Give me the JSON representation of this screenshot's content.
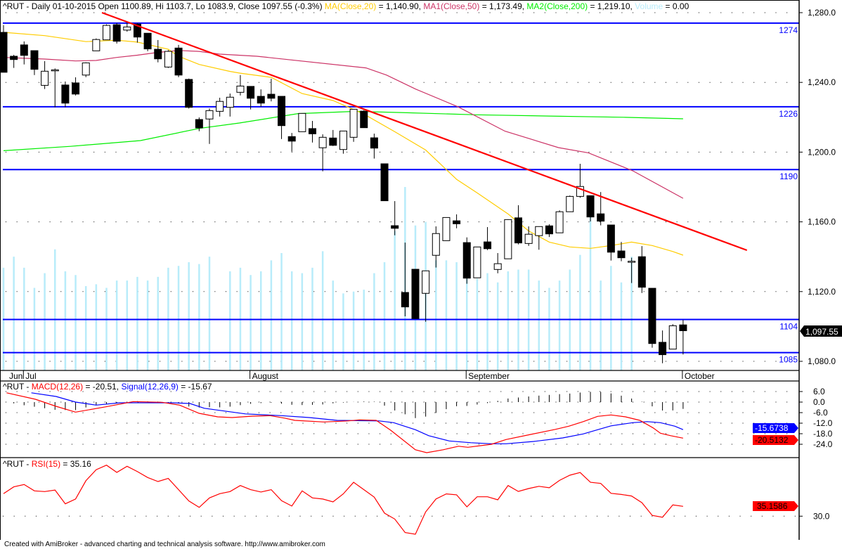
{
  "colors": {
    "ma20": "#ffcc00",
    "ma50": "#cc3366",
    "ma200": "#00ee00",
    "volume": "#b8ecfa",
    "trendline": "#ff0000",
    "hline": "#0000ff",
    "macd": "#ff0000",
    "signal": "#0000ff",
    "rsi": "#ff0000"
  },
  "price_header": {
    "prefix": "^RUT - Daily 01-10-2015 Open 1100.89, Hi 1103.7, Lo 1083.9, Close 1097.55 (-0.3%) ",
    "ma20_label": "MA(Close,20)",
    "ma20_value": " = 1,140.90, ",
    "ma50_label": "MA1(Close,50)",
    "ma50_value": " = 1,173.49, ",
    "ma200_label": "MA2(Close,200)",
    "ma200_value": " = 1,219.10, ",
    "volume_label": "Volume",
    "volume_value": " = 0.00"
  },
  "macd_header": {
    "prefix": "^RUT - ",
    "macd_label": "MACD(12,26)",
    "macd_value": " = -20.51, ",
    "signal_label": "Signal(12,26,9)",
    "signal_value": " = -15.67"
  },
  "rsi_header": {
    "prefix": "^RUT - ",
    "rsi_label": "RSI(15)",
    "rsi_value": " = 35.16"
  },
  "badges": {
    "price": "1,097.55",
    "signal": "-15.6738",
    "macd": "-20.5132",
    "rsi": "35.1586"
  },
  "footer": "Created with AmiBroker - advanced charting and technical analysis software. http://www.amibroker.com",
  "chart_data": [
    {
      "type": "candlestick",
      "title": "^RUT - Daily",
      "ylim": [
        1080,
        1280
      ],
      "yticks": [
        {
          "v": 1280,
          "label": "1,280.0"
        },
        {
          "v": 1240,
          "label": "1,240.0"
        },
        {
          "v": 1200,
          "label": "1,200.0"
        },
        {
          "v": 1160,
          "label": "1,160.0"
        },
        {
          "v": 1120,
          "label": "1,120.0"
        },
        {
          "v": 1080,
          "label": "1,080.0"
        }
      ],
      "xlabels": [
        {
          "label": "Jun",
          "index": 0,
          "tick": false
        },
        {
          "label": "Jul",
          "index": 2,
          "tick": true
        },
        {
          "label": "August",
          "index": 24,
          "tick": true
        },
        {
          "label": "September",
          "index": 45,
          "tick": true
        },
        {
          "label": "October",
          "index": 66,
          "tick": true
        }
      ],
      "ohlc": [
        [
          1268.7,
          1272.9,
          1245.8,
          1245.8
        ],
        [
          1255.0,
          1255.8,
          1248.3,
          1253.1
        ],
        [
          1261.5,
          1263.5,
          1250.3,
          1255.5
        ],
        [
          1258.2,
          1258.2,
          1244.2,
          1247.5
        ],
        [
          1238.3,
          1252.2,
          1236.2,
          1246.4
        ],
        [
          1247.2,
          1248.0,
          1225.7,
          1247.2
        ],
        [
          1238.5,
          1240.5,
          1225.7,
          1228.1
        ],
        [
          1239.7,
          1242.9,
          1232.5,
          1233.3
        ],
        [
          1244.2,
          1251.5,
          1243.0,
          1251.2
        ],
        [
          1258.1,
          1265.2,
          1258.1,
          1264.6
        ],
        [
          1264.4,
          1273.3,
          1264.4,
          1272.7
        ],
        [
          1273.1,
          1274.0,
          1262.3,
          1263.6
        ],
        [
          1270.0,
          1274.2,
          1269.1,
          1271.8
        ],
        [
          1273.5,
          1274.0,
          1262.8,
          1266.0
        ],
        [
          1268.2,
          1268.2,
          1257.9,
          1259.2
        ],
        [
          1259.0,
          1264.3,
          1251.5,
          1253.5
        ],
        [
          1248.8,
          1258.5,
          1248.3,
          1257.8
        ],
        [
          1259.7,
          1261.5,
          1243.0,
          1244.2
        ],
        [
          1241.7,
          1242.2,
          1225.0,
          1225.7
        ],
        [
          1218.7,
          1219.9,
          1212.0,
          1213.9
        ],
        [
          1219.0,
          1225.0,
          1204.7,
          1223.8
        ],
        [
          1223.4,
          1231.2,
          1220.4,
          1229.1
        ],
        [
          1225.7,
          1233.6,
          1220.4,
          1231.5
        ],
        [
          1234.3,
          1244.2,
          1232.5,
          1237.9
        ],
        [
          1237.7,
          1237.7,
          1224.5,
          1230.9
        ],
        [
          1232.0,
          1236.0,
          1226.0,
          1228.1
        ],
        [
          1233.2,
          1242.1,
          1229.1,
          1230.9
        ],
        [
          1232.0,
          1232.0,
          1207.5,
          1215.2
        ],
        [
          1208.9,
          1211.0,
          1200.3,
          1206.3
        ],
        [
          1211.7,
          1222.2,
          1211.7,
          1222.2
        ],
        [
          1213.5,
          1217.9,
          1205.5,
          1210.5
        ],
        [
          1202.5,
          1210.2,
          1189.0,
          1208.5
        ],
        [
          1208.1,
          1212.7,
          1203.5,
          1203.9
        ],
        [
          1201.5,
          1212.1,
          1199.1,
          1212.1
        ],
        [
          1208.5,
          1224.6,
          1205.9,
          1224.6
        ],
        [
          1223.5,
          1224.0,
          1214.0,
          1214.0
        ],
        [
          1208.2,
          1210.6,
          1196.3,
          1202.3
        ],
        [
          1193.3,
          1193.3,
          1172.1,
          1172.1
        ],
        [
          1157.8,
          1171.9,
          1152.3,
          1156.3
        ],
        [
          1119.5,
          1148.1,
          1105.8,
          1111.2
        ],
        [
          1132.8,
          1132.8,
          1104.3,
          1104.5
        ],
        [
          1119.0,
          1131.9,
          1102.7,
          1131.9
        ],
        [
          1140.8,
          1157.4,
          1133.8,
          1153.3
        ],
        [
          1149.2,
          1162.5,
          1149.2,
          1162.5
        ],
        [
          1160.6,
          1164.3,
          1156.3,
          1158.9
        ],
        [
          1148.1,
          1151.1,
          1124.5,
          1127.7
        ],
        [
          1127.9,
          1145.6,
          1127.9,
          1145.6
        ],
        [
          1148.5,
          1157.0,
          1143.8,
          1144.6
        ],
        [
          1132.7,
          1142.1,
          1130.5,
          1136.0
        ],
        [
          1138.8,
          1161.5,
          1138.8,
          1161.3
        ],
        [
          1162.3,
          1169.5,
          1147.1,
          1147.9
        ],
        [
          1147.6,
          1157.4,
          1146.2,
          1152.9
        ],
        [
          1152.1,
          1157.3,
          1144.0,
          1157.3
        ],
        [
          1157.7,
          1158.6,
          1151.3,
          1153.1
        ],
        [
          1153.7,
          1166.6,
          1153.7,
          1165.8
        ],
        [
          1165.8,
          1175.1,
          1165.8,
          1174.6
        ],
        [
          1174.6,
          1193.3,
          1173.8,
          1180.3
        ],
        [
          1175.0,
          1175.0,
          1160.2,
          1162.8
        ],
        [
          1164.6,
          1177.1,
          1158.0,
          1160.4
        ],
        [
          1158.2,
          1158.2,
          1137.8,
          1142.6
        ],
        [
          1143.3,
          1148.5,
          1137.4,
          1139.4
        ],
        [
          1137.4,
          1139.4,
          1124.9,
          1137.4
        ],
        [
          1140.0,
          1146.1,
          1119.2,
          1122.5
        ],
        [
          1121.9,
          1121.9,
          1087.8,
          1090.2
        ],
        [
          1090.9,
          1097.7,
          1078.9,
          1083.8
        ],
        [
          1087.0,
          1101.3,
          1087.0,
          1100.4
        ],
        [
          1100.89,
          1103.7,
          1083.9,
          1097.55
        ]
      ],
      "volume_relative": [
        56,
        62,
        56,
        45,
        53,
        66,
        54,
        52,
        46,
        47,
        45,
        49,
        49,
        51,
        49,
        51,
        56,
        57,
        59,
        58,
        62,
        0,
        54,
        56,
        52,
        54,
        60,
        64,
        54,
        53,
        56,
        65,
        49,
        42,
        43,
        44,
        53,
        59,
        76,
        100,
        79,
        81,
        60,
        60,
        59,
        50,
        50,
        53,
        48,
        54,
        55,
        55,
        49,
        45,
        49,
        55,
        63,
        87,
        49,
        57,
        48,
        62,
        0,
        0,
        0,
        0,
        0
      ],
      "ma20": [
        [
          0,
          1268.7
        ],
        [
          4,
          1266.8
        ],
        [
          8,
          1263.4
        ],
        [
          11,
          1264.2
        ],
        [
          13,
          1263.1
        ],
        [
          16,
          1259
        ],
        [
          17,
          1255
        ],
        [
          19,
          1250.3
        ],
        [
          22,
          1246.3
        ],
        [
          23,
          1245.3
        ],
        [
          26,
          1242.9
        ],
        [
          29,
          1233.6
        ],
        [
          32,
          1229.6
        ],
        [
          35,
          1221.8
        ],
        [
          38,
          1211.7
        ],
        [
          41,
          1201.2
        ],
        [
          44,
          1184.4
        ],
        [
          46,
          1176.6
        ],
        [
          49,
          1164.5
        ],
        [
          51,
          1154.8
        ],
        [
          53,
          1148.4
        ],
        [
          55,
          1145.6
        ],
        [
          57,
          1144.8
        ],
        [
          59,
          1146.4
        ],
        [
          61,
          1148.4
        ],
        [
          63,
          1146.4
        ],
        [
          65,
          1143
        ],
        [
          66,
          1140.9
        ]
      ],
      "ma50": [
        [
          0,
          1254.3
        ],
        [
          4,
          1253.4
        ],
        [
          7,
          1252.3
        ],
        [
          9,
          1252.6
        ],
        [
          11,
          1254.3
        ],
        [
          13,
          1255.6
        ],
        [
          15,
          1257.2
        ],
        [
          17,
          1258.3
        ],
        [
          19,
          1257.8
        ],
        [
          21,
          1256.2
        ],
        [
          24.6,
          1255
        ],
        [
          35.2,
          1248.3
        ],
        [
          37.2,
          1244.2
        ],
        [
          40,
          1236.2
        ],
        [
          44.1,
          1226.1
        ],
        [
          48.7,
          1212
        ],
        [
          53.9,
          1202.6
        ],
        [
          56.8,
          1199.6
        ],
        [
          61.1,
          1189.3
        ],
        [
          66,
          1173.49
        ]
      ],
      "ma200": [
        [
          0,
          1200.8
        ],
        [
          6.5,
          1203.3
        ],
        [
          13.3,
          1206.6
        ],
        [
          19,
          1213.6
        ],
        [
          22.9,
          1216.7
        ],
        [
          28.6,
          1222.1
        ],
        [
          34.3,
          1223.4
        ],
        [
          38.6,
          1222.7
        ],
        [
          45.9,
          1221.4
        ],
        [
          53,
          1220.7
        ],
        [
          60.2,
          1220
        ],
        [
          66,
          1219.1
        ]
      ],
      "trendline": [
        [
          9.56,
          1280
        ],
        [
          72.2,
          1143.7
        ]
      ],
      "hlines": [
        {
          "value": 1274,
          "label": "1274"
        },
        {
          "value": 1226,
          "label": "1226"
        },
        {
          "value": 1190,
          "label": "1190"
        },
        {
          "value": 1104,
          "label": "1104"
        },
        {
          "value": 1085,
          "label": "1085"
        }
      ]
    },
    {
      "type": "line",
      "title": "MACD(12,26) / Signal(12,26,9)",
      "ylim": [
        -27.5,
        11
      ],
      "yticks": [
        {
          "v": 6,
          "label": "6.0"
        },
        {
          "v": 0,
          "label": "0.0"
        },
        {
          "v": -6,
          "label": "-6.0"
        },
        {
          "v": -12,
          "label": "-12.0"
        },
        {
          "v": -18,
          "label": "-18.0"
        },
        {
          "v": -24,
          "label": "-24.0"
        }
      ],
      "macd": [
        [
          0.3,
          5.3
        ],
        [
          3.1,
          1.6
        ],
        [
          5.1,
          -2.4
        ],
        [
          7,
          -5.7
        ],
        [
          9.9,
          -2.7
        ],
        [
          12.6,
          0.3
        ],
        [
          15.4,
          -0.1
        ],
        [
          17.1,
          -1.7
        ],
        [
          19,
          -6.4
        ],
        [
          20.8,
          -8.4
        ],
        [
          22.2,
          -8.8
        ],
        [
          24.2,
          -8
        ],
        [
          25.9,
          -7.7
        ],
        [
          27.3,
          -9.1
        ],
        [
          28.3,
          -10.4
        ],
        [
          31.1,
          -11.3
        ],
        [
          33.4,
          -10.7
        ],
        [
          34.6,
          -10.1
        ],
        [
          36.2,
          -10.4
        ],
        [
          37.6,
          -16
        ],
        [
          40,
          -27.1
        ],
        [
          41.1,
          -28.8
        ],
        [
          42.7,
          -27.1
        ],
        [
          44.2,
          -25.1
        ],
        [
          45.1,
          -25.7
        ],
        [
          47.4,
          -24
        ],
        [
          48.8,
          -21.3
        ],
        [
          51.2,
          -18.4
        ],
        [
          53.6,
          -15.5
        ],
        [
          54.9,
          -13.7
        ],
        [
          56.3,
          -11.1
        ],
        [
          57.7,
          -8.1
        ],
        [
          59,
          -7.3
        ],
        [
          60.4,
          -8.4
        ],
        [
          61.8,
          -10.4
        ],
        [
          63.1,
          -14.7
        ],
        [
          63.8,
          -17.7
        ],
        [
          64.8,
          -19.1
        ],
        [
          66,
          -20.51
        ]
      ],
      "signal": [
        [
          2.7,
          5.3
        ],
        [
          5.1,
          3.2
        ],
        [
          7,
          0
        ],
        [
          9,
          -1.7
        ],
        [
          11.3,
          -0.4
        ],
        [
          16.4,
          -0.4
        ],
        [
          18.1,
          -0.8
        ],
        [
          19.5,
          -3.5
        ],
        [
          21.5,
          -5.1
        ],
        [
          23.5,
          -6.7
        ],
        [
          27,
          -7.7
        ],
        [
          29.7,
          -8.8
        ],
        [
          32.4,
          -10.4
        ],
        [
          36.5,
          -10.7
        ],
        [
          37.9,
          -11.7
        ],
        [
          40,
          -15.7
        ],
        [
          41.3,
          -19.1
        ],
        [
          43.3,
          -22.1
        ],
        [
          45.4,
          -23.1
        ],
        [
          47.4,
          -23.7
        ],
        [
          48.8,
          -23.7
        ],
        [
          51.5,
          -22.4
        ],
        [
          54.3,
          -20.4
        ],
        [
          56.3,
          -18.1
        ],
        [
          57.7,
          -15.7
        ],
        [
          59,
          -13.5
        ],
        [
          61.1,
          -11.7
        ],
        [
          62.5,
          -11.1
        ],
        [
          63.8,
          -11.7
        ],
        [
          65.2,
          -13.7
        ],
        [
          66,
          -15.67
        ]
      ]
    },
    {
      "type": "line",
      "title": "RSI(15)",
      "yticks": [
        {
          "v": 30,
          "label": "30.0"
        }
      ],
      "rsi": [
        41.8,
        45.4,
        46.6,
        43.3,
        42.9,
        43.7,
        36.5,
        39,
        48.6,
        54.4,
        56.8,
        53,
        56.2,
        53.4,
        50.3,
        48.2,
        49.8,
        43.9,
        38,
        34.6,
        39.6,
        41.8,
        42.9,
        46.1,
        43.9,
        42.7,
        43.9,
        38.1,
        35.3,
        43.3,
        39.6,
        39,
        37.5,
        41.7,
        47.8,
        43.9,
        40,
        31.6,
        28.5,
        21.4,
        20.5,
        32.2,
        39,
        41.7,
        41.2,
        34.9,
        40.2,
        40.2,
        38.6,
        46.1,
        43,
        44.5,
        45.7,
        44.9,
        48.8,
        51.5,
        52.9,
        47.8,
        47.2,
        42,
        41.4,
        40.6,
        37.1,
        30.4,
        29.4,
        35.9,
        35.16
      ]
    }
  ]
}
